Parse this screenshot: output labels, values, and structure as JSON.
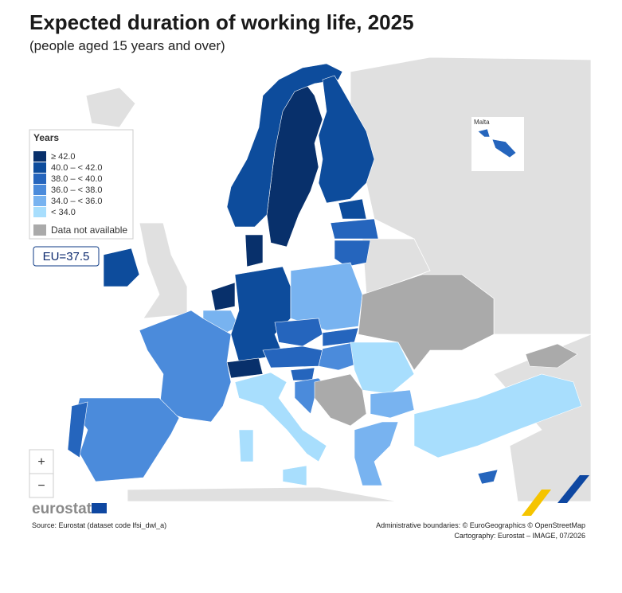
{
  "header": {
    "title": "Expected duration of working life, 2025",
    "subtitle": "(people aged 15 years and over)"
  },
  "legend": {
    "title": "Years",
    "items": [
      {
        "label": "≥ 42.0",
        "color": "#08306b"
      },
      {
        "label": "40.0 – < 42.0",
        "color": "#0d4c9c"
      },
      {
        "label": "38.0 – < 40.0",
        "color": "#2565bd"
      },
      {
        "label": "36.0 – < 38.0",
        "color": "#4b8bdb"
      },
      {
        "label": "34.0 – < 36.0",
        "color": "#78b3f0"
      },
      {
        "label": "< 34.0",
        "color": "#a8defd"
      }
    ],
    "not_available": {
      "label": "Data not available",
      "color": "#aaaaaa"
    }
  },
  "eu_average": "EU=37.5",
  "inset": {
    "label": "Malta"
  },
  "controls": {
    "zoom_in": "+",
    "zoom_out": "−"
  },
  "logo": "eurostat",
  "footer": {
    "source": "Source: Eurostat (dataset code lfsi_dwl_a)",
    "credits": [
      "Administrative boundaries: © EuroGeographics © OpenStreetMap",
      "Cartography: Eurostat – IMAGE, 07/2026"
    ]
  }
}
